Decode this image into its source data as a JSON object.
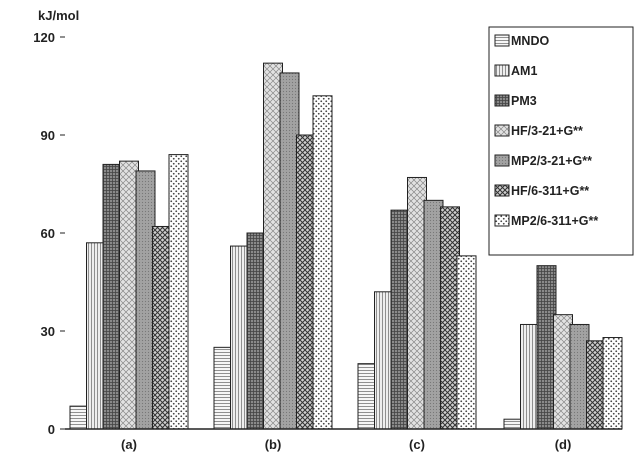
{
  "chart_data": {
    "type": "bar",
    "ylabel": "kJ/mol",
    "ylim": [
      0,
      120
    ],
    "yticks": [
      "0",
      "30",
      "60",
      "90",
      "120"
    ],
    "categories": [
      "(a)",
      "(b)",
      "(c)",
      "(d)"
    ],
    "legend_position": "top-right",
    "series": [
      {
        "name": "MNDO",
        "pattern": "hlines",
        "values": [
          7,
          25,
          20,
          3
        ]
      },
      {
        "name": "AM1",
        "pattern": "vlines",
        "values": [
          57,
          56,
          42,
          32
        ]
      },
      {
        "name": "PM3",
        "pattern": "grid",
        "values": [
          81,
          60,
          67,
          50
        ]
      },
      {
        "name": "HF/3-21+G**",
        "pattern": "crosshatch",
        "values": [
          82,
          112,
          77,
          35
        ]
      },
      {
        "name": "MP2/3-21+G**",
        "pattern": "dense",
        "values": [
          79,
          109,
          70,
          32
        ]
      },
      {
        "name": "HF/6-311+G**",
        "pattern": "doublecross",
        "values": [
          62,
          90,
          68,
          27
        ]
      },
      {
        "name": "MP2/6-311+G**",
        "pattern": "dots",
        "values": [
          84,
          102,
          53,
          28
        ]
      }
    ]
  }
}
